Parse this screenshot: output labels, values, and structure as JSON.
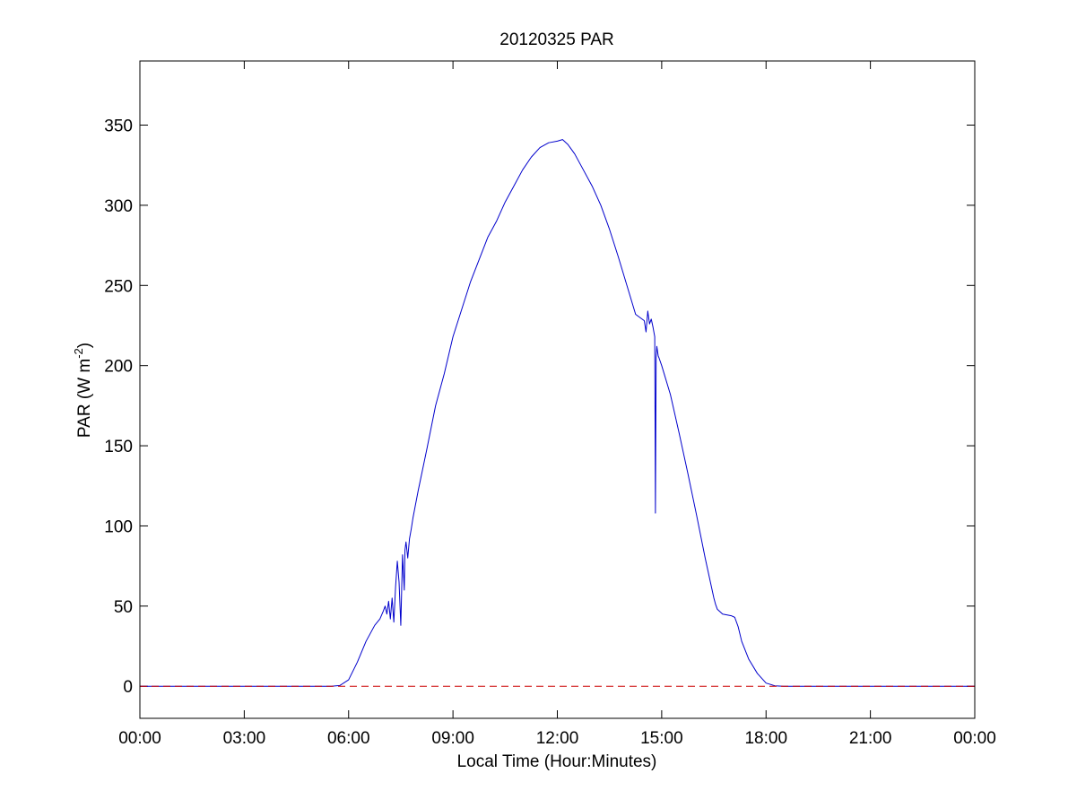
{
  "chart_data": {
    "type": "line",
    "title": "20120325 PAR",
    "xlabel": "Local Time (Hour:Minutes)",
    "ylabel": {
      "main": "PAR (W m",
      "superscript": "-2",
      "close": ")"
    },
    "xlim": [
      0,
      24
    ],
    "ylim": [
      -20,
      390
    ],
    "x_unit": "hours of day",
    "x_ticks": [
      0,
      3,
      6,
      9,
      12,
      15,
      18,
      21,
      24
    ],
    "x_tick_labels": [
      "00:00",
      "03:00",
      "06:00",
      "09:00",
      "12:00",
      "15:00",
      "18:00",
      "21:00",
      "00:00"
    ],
    "y_ticks": [
      0,
      50,
      100,
      150,
      200,
      250,
      300,
      350
    ],
    "y_tick_labels": [
      "0",
      "50",
      "100",
      "150",
      "200",
      "250",
      "300",
      "350"
    ],
    "grid": false,
    "series": [
      {
        "color": "#0000cc",
        "style": "solid",
        "x": [
          0,
          5.5,
          5.75,
          6.0,
          6.25,
          6.5,
          6.75,
          6.9,
          7.0,
          7.05,
          7.1,
          7.15,
          7.2,
          7.25,
          7.3,
          7.35,
          7.4,
          7.45,
          7.5,
          7.55,
          7.6,
          7.62,
          7.65,
          7.7,
          7.75,
          7.8,
          7.85,
          8.0,
          8.25,
          8.5,
          8.75,
          9.0,
          9.25,
          9.5,
          9.75,
          10.0,
          10.25,
          10.5,
          10.75,
          11.0,
          11.25,
          11.5,
          11.75,
          12.0,
          12.15,
          12.3,
          12.5,
          12.75,
          13.0,
          13.25,
          13.5,
          13.75,
          14.0,
          14.25,
          14.5,
          14.55,
          14.6,
          14.65,
          14.7,
          14.75,
          14.8,
          14.82,
          14.84,
          14.86,
          14.88,
          14.9,
          14.92,
          15.0,
          15.25,
          15.5,
          15.75,
          16.0,
          16.25,
          16.5,
          16.55,
          16.6,
          16.75,
          17.0,
          17.1,
          17.2,
          17.3,
          17.5,
          17.75,
          18.0,
          18.25,
          18.5,
          18.75,
          24
        ],
        "y": [
          0,
          0,
          0.5,
          4,
          15,
          28,
          38,
          42,
          47,
          50,
          45,
          53,
          42,
          55,
          40,
          62,
          78,
          65,
          38,
          82,
          60,
          85,
          90,
          80,
          92,
          98,
          105,
          122,
          148,
          175,
          195,
          218,
          235,
          252,
          266,
          280,
          290,
          302,
          312,
          322,
          330,
          336,
          339,
          340,
          341,
          338,
          332,
          322,
          312,
          300,
          285,
          268,
          250,
          232,
          228,
          221,
          234,
          226,
          229,
          224,
          218,
          108,
          205,
          212,
          209,
          206,
          205,
          200,
          182,
          158,
          133,
          107,
          80,
          55,
          51,
          48,
          45,
          44,
          43,
          37,
          28,
          17,
          8,
          2,
          0.3,
          0,
          0,
          0
        ]
      },
      {
        "color": "#cc0000",
        "style": "dashed",
        "x": [
          0,
          24
        ],
        "y": [
          0,
          0
        ]
      }
    ]
  }
}
